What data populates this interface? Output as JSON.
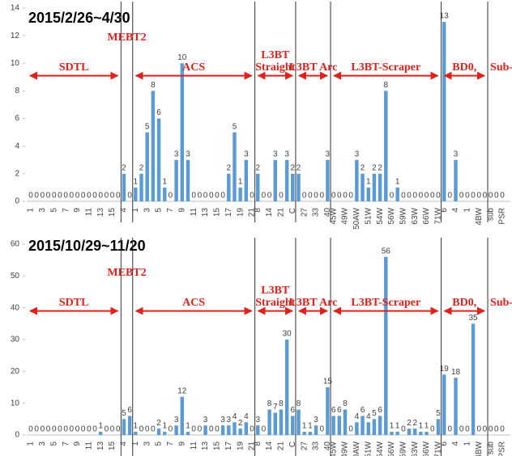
{
  "chart_data": [
    {
      "type": "bar",
      "title": "2015/2/26~4/30",
      "color": "#5b9bd5",
      "ylim": [
        0,
        14
      ],
      "yticks": [
        0,
        2,
        4,
        6,
        8,
        10,
        12,
        14
      ],
      "groups": [
        {
          "name": "SDTL",
          "categories": [
            "1",
            null,
            "3",
            null,
            "5",
            null,
            "7",
            null,
            "9",
            null,
            "11",
            null,
            "13",
            null,
            "15",
            null
          ],
          "values": [
            0,
            0,
            0,
            0,
            0,
            0,
            0,
            0,
            0,
            0,
            0,
            0,
            0,
            0,
            0,
            0
          ]
        },
        {
          "name": "MEBT2",
          "categories": [
            "4",
            null
          ],
          "values": [
            2,
            0
          ]
        },
        {
          "name": "ACS",
          "categories": [
            "1",
            null,
            "3",
            null,
            "5",
            null,
            "7",
            null,
            "9",
            null,
            "11",
            null,
            "13",
            null,
            "15",
            null,
            "17",
            null,
            "19",
            null,
            "21"
          ],
          "values": [
            1,
            2,
            5,
            8,
            6,
            1,
            0,
            3,
            10,
            3,
            0,
            0,
            0,
            0,
            0,
            0,
            2,
            5,
            1,
            3,
            0
          ]
        },
        {
          "name": "L3BT Straight",
          "categories": [
            "8",
            null,
            "14",
            null,
            "21",
            null,
            "C"
          ],
          "values": [
            2,
            0,
            0,
            3,
            0,
            3,
            2
          ]
        },
        {
          "name": "L3BT Arc",
          "categories": [
            null,
            "27",
            null,
            "33",
            null,
            "40"
          ],
          "values": [
            2,
            0,
            0,
            0,
            0,
            3
          ]
        },
        {
          "name": "L3BT-Scraper",
          "categories": [
            "45W",
            null,
            "49W",
            null,
            "50AW",
            null,
            "51W",
            null,
            "54W",
            null,
            "56W",
            null,
            "59W",
            null,
            "63W",
            null,
            "66W",
            null,
            "71W"
          ],
          "values": [
            0,
            0,
            0,
            0,
            3,
            2,
            1,
            2,
            2,
            8,
            0,
            1,
            0,
            0,
            0,
            0,
            0,
            0,
            0
          ]
        },
        {
          "name": "BD0,",
          "categories": [
            "6",
            null,
            "4",
            null,
            "1",
            null,
            "4BW",
            null
          ],
          "values": [
            13,
            0,
            3,
            0,
            0,
            0,
            0,
            0
          ]
        },
        {
          "name": "Sub-",
          "categories": [
            "sub",
            null,
            "PSR"
          ],
          "values": [
            0,
            0,
            0
          ]
        }
      ]
    },
    {
      "type": "bar",
      "title": "2015/10/29~11/20",
      "color": "#5b9bd5",
      "ylim": [
        0,
        60
      ],
      "yticks": [
        0,
        10,
        20,
        30,
        40,
        50,
        60
      ],
      "groups": [
        {
          "name": "SDTL",
          "categories": [
            "1",
            null,
            "3",
            null,
            "5",
            null,
            "7",
            null,
            "9",
            null,
            "11",
            null,
            "13",
            null,
            "15",
            null
          ],
          "values": [
            0,
            0,
            0,
            0,
            0,
            0,
            0,
            0,
            0,
            0,
            0,
            0,
            1,
            0,
            0,
            0
          ]
        },
        {
          "name": "MEBT2",
          "categories": [
            "4",
            null
          ],
          "values": [
            5,
            6
          ]
        },
        {
          "name": "ACS",
          "categories": [
            "1",
            null,
            "3",
            null,
            "5",
            null,
            "7",
            null,
            "9",
            null,
            "11",
            null,
            "13",
            null,
            "15",
            null,
            "17",
            null,
            "19",
            null,
            "21"
          ],
          "values": [
            1,
            0,
            0,
            0,
            2,
            1,
            0,
            3,
            12,
            1,
            0,
            0,
            3,
            0,
            0,
            3,
            3,
            4,
            2,
            4,
            0
          ]
        },
        {
          "name": "L3BT Straight",
          "categories": [
            "8",
            null,
            "14",
            null,
            "21",
            null,
            "C"
          ],
          "values": [
            3,
            0,
            8,
            7,
            8,
            30,
            6
          ]
        },
        {
          "name": "L3BT Arc",
          "categories": [
            null,
            "27",
            null,
            "33",
            null,
            "40"
          ],
          "values": [
            8,
            1,
            1,
            3,
            0,
            15
          ]
        },
        {
          "name": "L3BT-Scraper",
          "categories": [
            "45W",
            null,
            "49W",
            null,
            "50AW",
            null,
            "51W",
            null,
            "54W",
            null,
            "56W",
            null,
            "59W",
            null,
            "63W",
            null,
            "66W",
            null,
            "71W"
          ],
          "values": [
            6,
            6,
            8,
            0,
            4,
            6,
            4,
            5,
            6,
            56,
            1,
            1,
            0,
            2,
            2,
            1,
            1,
            0,
            5
          ]
        },
        {
          "name": "BD0,",
          "categories": [
            "6",
            null,
            "4",
            null,
            "1",
            null,
            "4BW",
            null
          ],
          "values": [
            19,
            0,
            18,
            0,
            0,
            35,
            0,
            0
          ]
        },
        {
          "name": "Sub-",
          "categories": [
            "sub",
            null,
            "PSR"
          ],
          "values": [
            0,
            0,
            0
          ]
        }
      ]
    }
  ]
}
